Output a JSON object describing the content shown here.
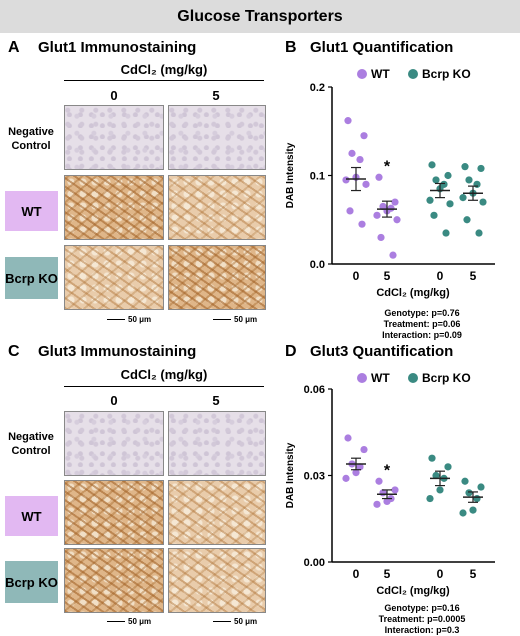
{
  "banner": "Glucose Transporters",
  "colors": {
    "wt": "#ab7ee0",
    "ko": "#3a8a82",
    "wt_box": "#e2b8f2",
    "ko_box": "#8fb8b8",
    "banner": "#dcdcdc"
  },
  "panelA": {
    "letter": "A",
    "title": "Glut1 Immunostaining",
    "header": "CdCl₂ (mg/kg)",
    "cols": [
      "0",
      "5"
    ],
    "rows": [
      "Negative Control",
      "WT",
      "Bcrp KO"
    ],
    "scale": "50 μm"
  },
  "panelC": {
    "letter": "C",
    "title": "Glut3 Immunostaining",
    "header": "CdCl₂ (mg/kg)",
    "cols": [
      "0",
      "5"
    ],
    "rows": [
      "Negative Control",
      "WT",
      "Bcrp KO"
    ],
    "scale": "50 μm"
  },
  "chart_data": [
    {
      "panel": "B",
      "title": "Glut1 Quantification",
      "type": "scatter",
      "legend": [
        "WT",
        "Bcrp KO"
      ],
      "legend_position": "top",
      "ylabel": "DAB Intensity",
      "xlabel": "CdCl₂ (mg/kg)",
      "yticks": [
        "0.0",
        "0.1",
        "0.2"
      ],
      "ylim": [
        0,
        0.2
      ],
      "categories": [
        "0",
        "5",
        "0",
        "5"
      ],
      "groups": [
        {
          "series": "WT",
          "dose": "0",
          "mean": 0.096,
          "sem": 0.013,
          "points": [
            0.162,
            0.145,
            0.125,
            0.118,
            0.098,
            0.095,
            0.09,
            0.06,
            0.045
          ]
        },
        {
          "series": "WT",
          "dose": "5",
          "mean": 0.062,
          "sem": 0.009,
          "significant": true,
          "points": [
            0.098,
            0.07,
            0.065,
            0.063,
            0.06,
            0.055,
            0.05,
            0.03,
            0.01
          ]
        },
        {
          "series": "Bcrp KO",
          "dose": "0",
          "mean": 0.083,
          "sem": 0.008,
          "points": [
            0.112,
            0.1,
            0.095,
            0.09,
            0.085,
            0.072,
            0.068,
            0.055,
            0.035
          ]
        },
        {
          "series": "Bcrp KO",
          "dose": "5",
          "mean": 0.08,
          "sem": 0.008,
          "points": [
            0.11,
            0.108,
            0.095,
            0.09,
            0.08,
            0.075,
            0.07,
            0.05,
            0.035
          ]
        }
      ],
      "significance_marker": "*",
      "stats": [
        "Genotype: p=0.76",
        "Treatment: p=0.06",
        "Interaction: p=0.09"
      ]
    },
    {
      "panel": "D",
      "title": "Glut3 Quantification",
      "type": "scatter",
      "legend": [
        "WT",
        "Bcrp KO"
      ],
      "legend_position": "top",
      "ylabel": "DAB Intensity",
      "xlabel": "CdCl₂ (mg/kg)",
      "yticks": [
        "0.00",
        "0.03",
        "0.06"
      ],
      "ylim": [
        0,
        0.06
      ],
      "categories": [
        "0",
        "5",
        "0",
        "5"
      ],
      "groups": [
        {
          "series": "WT",
          "dose": "0",
          "mean": 0.034,
          "sem": 0.002,
          "points": [
            0.043,
            0.039,
            0.034,
            0.033,
            0.031,
            0.029
          ]
        },
        {
          "series": "WT",
          "dose": "5",
          "mean": 0.0235,
          "sem": 0.0015,
          "significant": true,
          "points": [
            0.028,
            0.025,
            0.024,
            0.022,
            0.021,
            0.02
          ]
        },
        {
          "series": "Bcrp KO",
          "dose": "0",
          "mean": 0.029,
          "sem": 0.0025,
          "points": [
            0.036,
            0.033,
            0.03,
            0.029,
            0.025,
            0.022
          ]
        },
        {
          "series": "Bcrp KO",
          "dose": "5",
          "mean": 0.0225,
          "sem": 0.0018,
          "points": [
            0.028,
            0.026,
            0.024,
            0.022,
            0.018,
            0.017
          ]
        }
      ],
      "significance_marker": "*",
      "stats": [
        "Genotype: p=0.16",
        "Treatment: p=0.0005",
        "Interaction: p=0.3"
      ]
    }
  ]
}
